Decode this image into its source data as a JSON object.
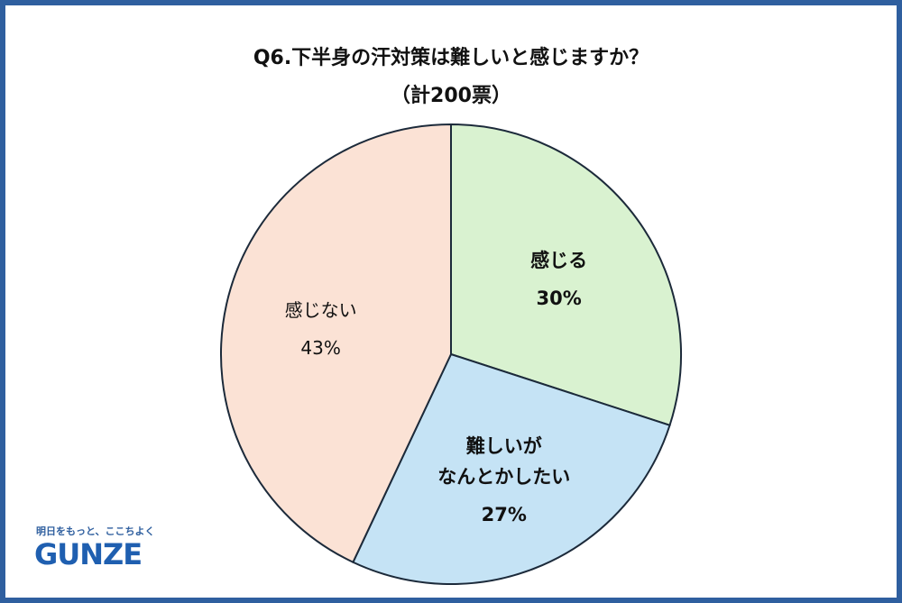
{
  "chart_data": {
    "type": "pie",
    "title": "Q6.下半身の汗対策は難しいと感じますか？",
    "subtitle": "（計200票）",
    "categories": [
      "感じる",
      "難しいが\nなんとかしたい",
      "感じない"
    ],
    "values": [
      30,
      27,
      43
    ],
    "value_labels": [
      "30%",
      "27%",
      "43%"
    ],
    "colors": [
      "#d9f2d0",
      "#c5e3f5",
      "#fbe2d5"
    ]
  },
  "logo": {
    "tagline": "明日をもっと、ここちよく",
    "name": "GUNZE"
  }
}
